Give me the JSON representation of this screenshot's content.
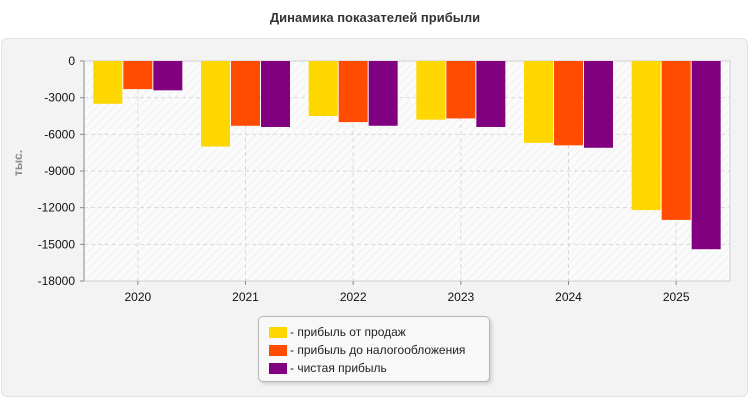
{
  "chart_data": {
    "type": "bar",
    "title": "Динамика показателей прибыли",
    "ylabel": "тыс.",
    "xlabel": "",
    "categories": [
      "2020",
      "2021",
      "2022",
      "2023",
      "2024",
      "2025"
    ],
    "series": [
      {
        "name": "- прибыль от продаж",
        "color": "#ffd700",
        "values": [
          -3500,
          -7000,
          -4500,
          -4800,
          -6700,
          -12200
        ]
      },
      {
        "name": "- прибыль до налогообложения",
        "color": "#ff4c00",
        "values": [
          -2300,
          -5300,
          -5000,
          -4700,
          -6900,
          -13000
        ]
      },
      {
        "name": "- чистая прибыль",
        "color": "#800080",
        "values": [
          -2400,
          -5400,
          -5300,
          -5400,
          -7100,
          -15400
        ]
      }
    ],
    "ylim": [
      -18000,
      0
    ],
    "yticks": [
      "0",
      "-3000",
      "-6000",
      "-9000",
      "-12000",
      "-15000",
      "-18000"
    ],
    "grid": true,
    "legend_position": "bottom-center"
  }
}
